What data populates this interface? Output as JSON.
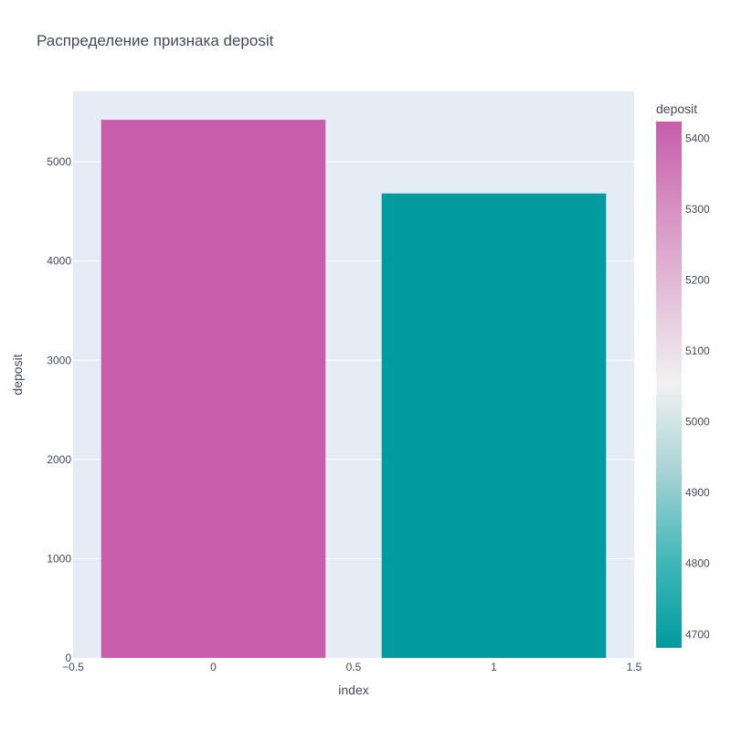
{
  "chart_data": {
    "type": "bar",
    "title": "Распределение признака deposit",
    "xlabel": "index",
    "ylabel": "deposit",
    "x": [
      0,
      1
    ],
    "x_tick_labels": [
      "0",
      "1"
    ],
    "values": [
      5424,
      4681
    ],
    "xlim": [
      -0.5,
      1.5
    ],
    "ylim": [
      0,
      5710
    ],
    "x_ticks": [
      -0.5,
      0,
      0.5,
      1,
      1.5
    ],
    "x_ticks_text": [
      "−0.5",
      "0",
      "0.5",
      "1",
      "1.5"
    ],
    "y_ticks": [
      0,
      1000,
      2000,
      3000,
      4000,
      5000
    ],
    "grid": true,
    "colorbar": {
      "title": "deposit",
      "range": [
        4681,
        5424
      ],
      "ticks": [
        4700,
        4800,
        4900,
        5000,
        5100,
        5200,
        5300,
        5400
      ],
      "colors": [
        "#009b9e",
        "#42b7b9",
        "#a7d3d4",
        "#f1f1f1",
        "#e4c1d9",
        "#d691c1",
        "#c75dab"
      ]
    },
    "bar_colors": [
      "#c75dab",
      "#009b9e"
    ],
    "background_color": "#e5ecf6"
  }
}
